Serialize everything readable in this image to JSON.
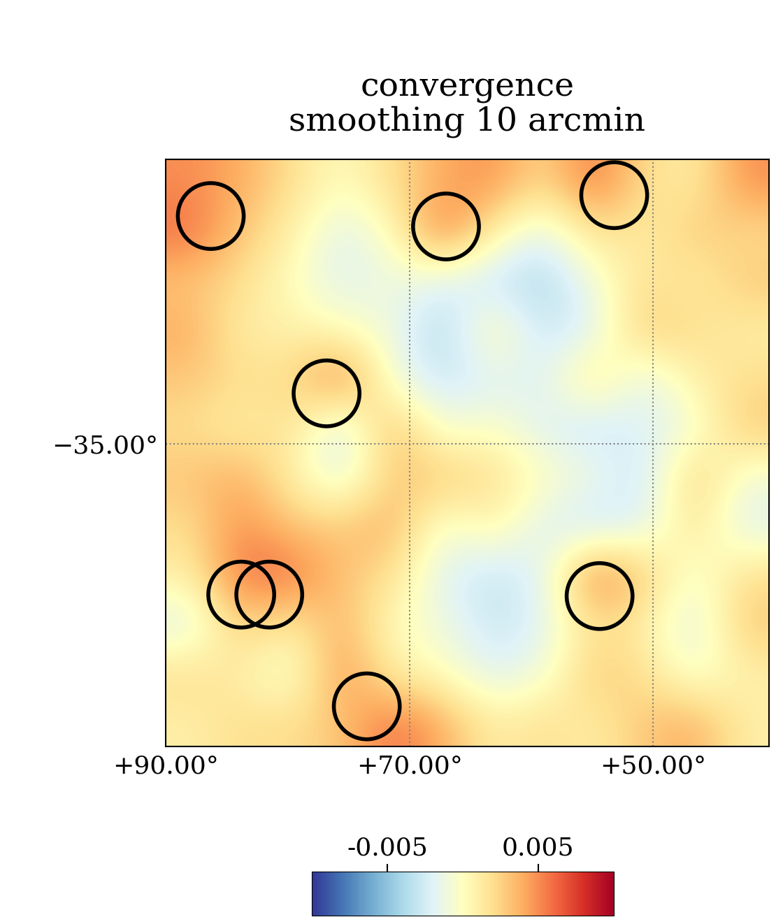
{
  "chart_data": {
    "type": "heatmap",
    "title": "convergence\nsmoothing 10 arcmin",
    "xlim": [
      90,
      40.5
    ],
    "ylim": [
      -55.3,
      -15.9
    ],
    "xticks": [
      {
        "value": 90,
        "label": "+90.00°"
      },
      {
        "value": 70,
        "label": "+70.00°"
      },
      {
        "value": 50,
        "label": "+50.00°"
      }
    ],
    "yticks": [
      {
        "value": -35,
        "label": "−35.00°"
      }
    ],
    "grid": true,
    "cells": [
      [
        0.005,
        0.004,
        0.002,
        0.0,
        0.002,
        0.004,
        0.005,
        0.002,
        0.006,
        0.002,
        0.001,
        0.005
      ],
      [
        0.006,
        0.003,
        0.001,
        -0.002,
        0.0,
        0.006,
        0.001,
        -0.002,
        0.002,
        0.001,
        0.003,
        0.002
      ],
      [
        0.003,
        0.002,
        0.0,
        -0.002,
        -0.001,
        -0.002,
        -0.003,
        -0.004,
        -0.001,
        0.002,
        0.001,
        0.003
      ],
      [
        0.004,
        0.001,
        0.001,
        0.0,
        -0.001,
        -0.004,
        0.001,
        -0.003,
        -0.002,
        0.003,
        0.002,
        0.001
      ],
      [
        0.003,
        0.002,
        0.002,
        0.006,
        -0.001,
        -0.003,
        -0.002,
        -0.002,
        0.002,
        -0.002,
        0.001,
        0.002
      ],
      [
        0.002,
        0.001,
        0.002,
        -0.003,
        0.004,
        -0.001,
        0.0,
        -0.002,
        -0.003,
        -0.002,
        -0.001,
        0.003
      ],
      [
        0.003,
        0.004,
        0.001,
        -0.002,
        0.003,
        0.003,
        0.002,
        0.0,
        -0.001,
        -0.003,
        0.003,
        -0.001
      ],
      [
        0.002,
        0.005,
        0.003,
        0.003,
        0.004,
        -0.001,
        0.001,
        -0.002,
        -0.003,
        -0.002,
        0.002,
        -0.002
      ],
      [
        0.001,
        0.006,
        0.006,
        0.003,
        0.002,
        -0.002,
        -0.003,
        -0.002,
        0.006,
        0.003,
        -0.001,
        0.002
      ],
      [
        -0.002,
        0.003,
        0.001,
        0.004,
        0.0,
        -0.001,
        -0.003,
        -0.002,
        0.002,
        0.001,
        -0.002,
        0.003
      ],
      [
        0.002,
        0.001,
        -0.001,
        0.005,
        0.001,
        0.0,
        -0.002,
        -0.001,
        0.003,
        0.002,
        -0.001,
        0.001
      ],
      [
        0.001,
        0.002,
        0.002,
        0.003,
        0.006,
        0.004,
        0.001,
        0.002,
        0.001,
        0.003,
        0.004,
        0.001
      ]
    ],
    "colorbar": {
      "range": [
        -0.01,
        0.01
      ],
      "ticks": [
        -0.005,
        0.005
      ]
    },
    "series": [
      {
        "type": "scatter",
        "marker": "o",
        "color": "#000000",
        "x": [
          86.3,
          67.0,
          53.2,
          76.8,
          83.8,
          81.5,
          54.4,
          73.5
        ],
        "y": [
          -19.7,
          -20.4,
          -18.3,
          -31.6,
          -45.1,
          -45.1,
          -45.2,
          -52.6
        ]
      }
    ]
  }
}
